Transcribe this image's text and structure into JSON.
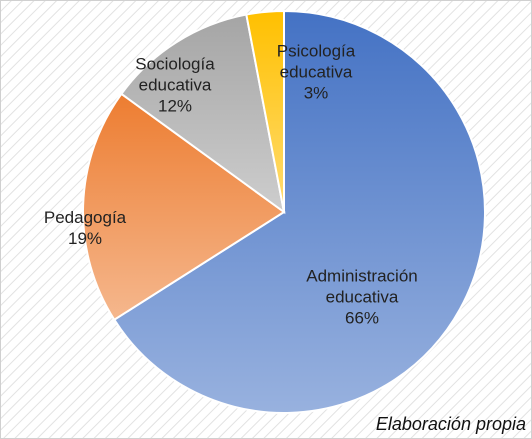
{
  "chart_data": {
    "type": "pie",
    "categories": [
      "Administración educativa",
      "Pedagogía",
      "Sociología educativa",
      "Psicología educativa"
    ],
    "values": [
      66,
      19,
      12,
      3
    ],
    "value_labels": [
      "66%",
      "19%",
      "12%",
      "3%"
    ],
    "colors": [
      "#4472c4",
      "#ed7d31",
      "#a5a5a5",
      "#ffc000"
    ],
    "annotation": "Elaboración propia"
  }
}
